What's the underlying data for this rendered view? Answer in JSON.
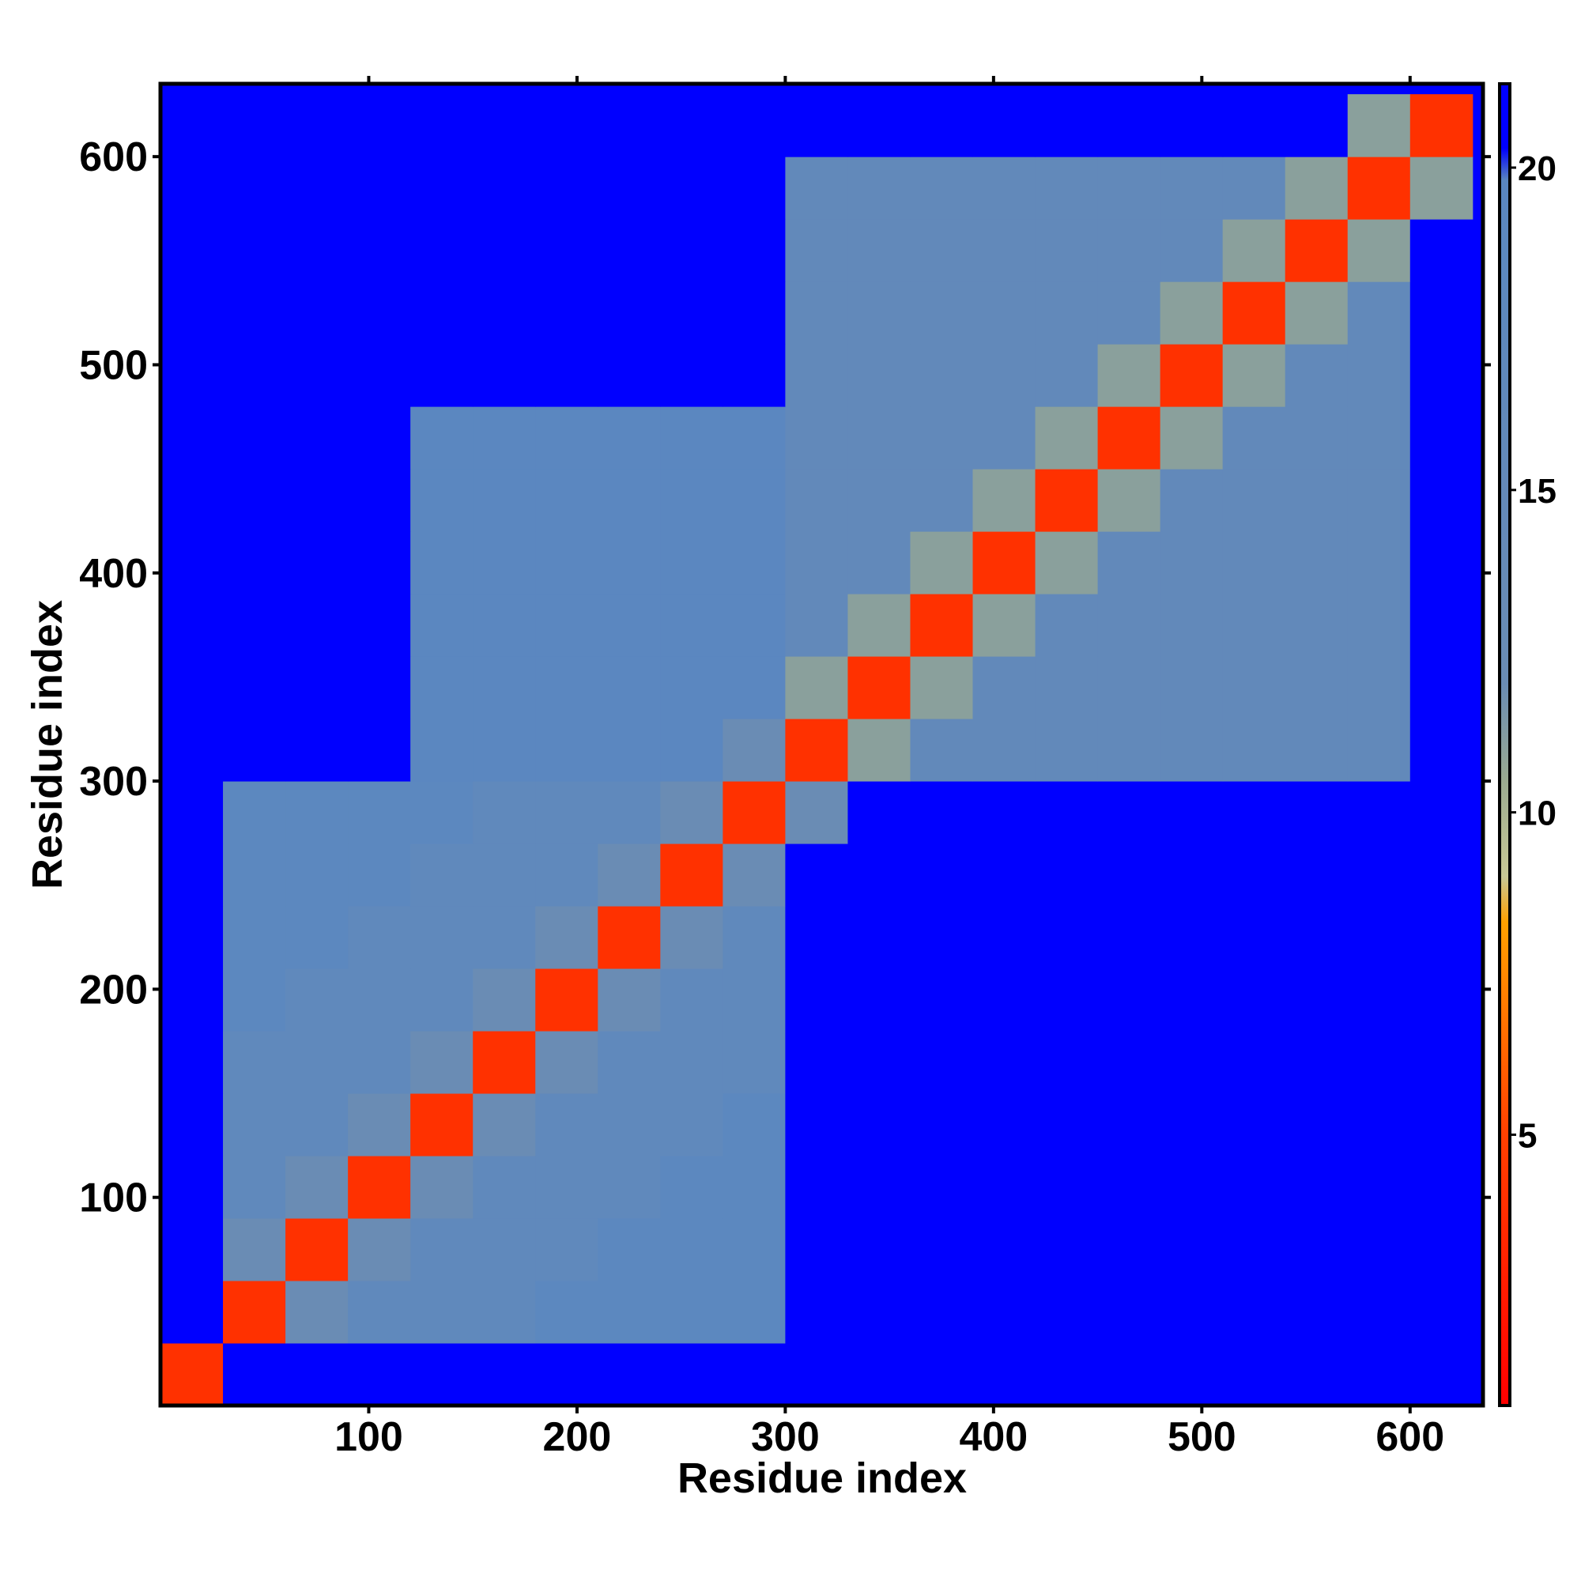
{
  "chart_data": {
    "type": "heatmap",
    "xlabel": "Residue index",
    "ylabel": "Residue index",
    "xlim": [
      0,
      635
    ],
    "ylim": [
      0,
      635
    ],
    "xticks": [
      100,
      200,
      300,
      400,
      500,
      600
    ],
    "yticks": [
      100,
      200,
      300,
      400,
      500,
      600
    ],
    "bins": [
      0,
      30,
      60,
      90,
      120,
      150,
      180,
      210,
      240,
      270,
      300,
      330,
      360,
      390,
      420,
      450,
      480,
      510,
      540,
      570,
      600,
      630
    ],
    "values": [
      [
        4,
        21,
        21,
        21,
        21,
        21,
        21,
        21,
        21,
        21,
        21,
        21,
        21,
        21,
        21,
        21,
        21,
        21,
        21,
        21,
        21
      ],
      [
        21,
        4,
        12,
        17,
        17,
        17,
        19,
        19,
        19,
        19,
        20.5,
        20.5,
        20.5,
        20.5,
        20.5,
        20.5,
        20.5,
        20.5,
        20.5,
        20.5,
        21
      ],
      [
        21,
        12,
        4,
        12,
        17,
        17,
        17,
        19,
        19,
        19,
        20.5,
        20.5,
        20.5,
        20.5,
        20.5,
        20.5,
        20.5,
        20.5,
        20.5,
        20.5,
        21
      ],
      [
        21,
        17,
        12,
        4,
        12,
        17,
        17,
        17,
        19,
        19,
        20.5,
        20.5,
        20.5,
        20.5,
        20.5,
        20.5,
        20.5,
        20.5,
        20.5,
        20.5,
        21
      ],
      [
        21,
        17,
        17,
        12,
        4,
        12,
        17,
        17,
        17,
        19,
        20.5,
        20.5,
        20.5,
        20.5,
        20.5,
        20.5,
        20.5,
        20.5,
        20.5,
        20.5,
        21
      ],
      [
        21,
        17,
        17,
        17,
        12,
        4,
        12,
        17,
        17,
        17,
        20.5,
        20.5,
        20.5,
        20.5,
        20.5,
        20.5,
        20.5,
        20.5,
        20.5,
        20.5,
        21
      ],
      [
        21,
        19,
        17,
        17,
        17,
        12,
        4,
        12,
        17,
        17,
        20.5,
        20.5,
        20.5,
        20.5,
        20.5,
        20.5,
        20.5,
        20.5,
        20.5,
        20.5,
        21
      ],
      [
        21,
        19,
        19,
        17,
        17,
        17,
        12,
        4,
        12,
        17,
        20.5,
        20.5,
        20.5,
        20.5,
        20.5,
        20.5,
        20.5,
        20.5,
        20.5,
        20.5,
        21
      ],
      [
        21,
        19,
        19,
        19,
        17,
        17,
        17,
        12,
        4,
        12,
        20.5,
        20.5,
        20.5,
        20.5,
        20.5,
        20.5,
        20.5,
        20.5,
        20.5,
        20.5,
        21
      ],
      [
        21,
        19,
        19,
        19,
        19,
        17,
        17,
        17,
        12,
        4,
        12,
        20.5,
        20.5,
        20.5,
        20.5,
        20.5,
        20.5,
        20.5,
        20.5,
        20.5,
        21
      ],
      [
        21,
        21,
        21,
        21,
        19.5,
        19.5,
        19.5,
        19.5,
        19.5,
        12,
        4,
        11,
        16,
        16,
        16,
        16,
        16,
        16,
        16,
        16,
        20.5
      ],
      [
        21,
        21,
        21,
        21,
        19.5,
        19.5,
        19.5,
        19.5,
        19.5,
        19.5,
        11,
        4,
        11,
        16,
        16,
        16,
        16,
        16,
        16,
        16,
        20.5
      ],
      [
        21,
        21,
        21,
        21,
        19.5,
        19.5,
        19.5,
        19.5,
        19.5,
        19.5,
        16,
        11,
        4,
        11,
        16,
        16,
        16,
        16,
        16,
        16,
        20.5
      ],
      [
        21,
        21,
        21,
        21,
        19.5,
        19.5,
        19.5,
        19.5,
        19.5,
        19.5,
        16,
        16,
        11,
        4,
        11,
        16,
        16,
        16,
        16,
        16,
        20.5
      ],
      [
        21,
        21,
        21,
        21,
        19.5,
        19.5,
        19.5,
        19.5,
        19.5,
        19.5,
        16,
        16,
        16,
        11,
        4,
        11,
        16,
        16,
        16,
        16,
        20.5
      ],
      [
        21,
        21,
        21,
        21,
        19.5,
        19.5,
        19.5,
        19.5,
        19.5,
        19.5,
        16,
        16,
        16,
        16,
        11,
        4,
        11,
        16,
        16,
        16,
        20.5
      ],
      [
        21,
        21,
        21,
        21,
        21,
        21,
        21,
        21,
        21,
        21,
        16,
        16,
        16,
        16,
        16,
        11,
        4,
        11,
        16,
        16,
        20.5
      ],
      [
        21,
        21,
        21,
        21,
        21,
        21,
        21,
        21,
        21,
        21,
        16,
        16,
        16,
        16,
        16,
        16,
        11,
        4,
        11,
        16,
        20.5
      ],
      [
        21,
        21,
        21,
        21,
        21,
        21,
        21,
        21,
        21,
        21,
        16,
        16,
        16,
        16,
        16,
        16,
        16,
        11,
        4,
        11,
        20.5
      ],
      [
        21,
        21,
        21,
        21,
        21,
        21,
        21,
        21,
        21,
        21,
        16,
        16,
        16,
        16,
        16,
        16,
        16,
        16,
        11,
        4,
        11
      ],
      [
        21,
        21,
        21,
        21,
        21,
        21,
        21,
        21,
        21,
        21,
        20.5,
        20.5,
        20.5,
        20.5,
        20.5,
        20.5,
        20.5,
        20.5,
        20.5,
        11,
        4
      ]
    ],
    "clim": [
      0.8,
      21.3
    ],
    "cticks": [
      5,
      10,
      15,
      20
    ],
    "colormap": [
      [
        0.8,
        "#ff0000"
      ],
      [
        5,
        "#ff4000"
      ],
      [
        8.3,
        "#ffa000"
      ],
      [
        9,
        "#c8c896"
      ],
      [
        10.5,
        "#9aaa90"
      ],
      [
        12,
        "#6a8cb4"
      ],
      [
        19.8,
        "#5a87c0"
      ],
      [
        20.3,
        "#0000ff"
      ],
      [
        21.3,
        "#0000ff"
      ]
    ]
  }
}
